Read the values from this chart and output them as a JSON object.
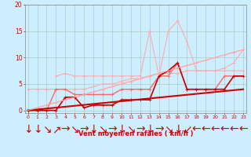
{
  "bg_color": "#cceeff",
  "grid_color": "#aacccc",
  "xlabel": "Vent moyen/en rafales ( km/h )",
  "xlabel_color": "#cc0000",
  "tick_color": "#cc0000",
  "yticks": [
    0,
    5,
    10,
    15,
    20
  ],
  "xticks": [
    0,
    1,
    2,
    3,
    4,
    5,
    6,
    7,
    8,
    9,
    10,
    11,
    12,
    13,
    14,
    15,
    16,
    17,
    18,
    19,
    20,
    21,
    22,
    23
  ],
  "xtick_labels": [
    "0",
    "1",
    "2",
    "3",
    "4",
    "5",
    "6",
    "7",
    "8",
    "9",
    "10",
    "11",
    "12",
    "13",
    "14",
    "15",
    "16",
    "17",
    "18",
    "19",
    "20",
    "21",
    "2223"
  ],
  "xlim": [
    -0.3,
    23.3
  ],
  "ylim": [
    -0.5,
    20
  ],
  "series": [
    {
      "name": "diagonal_light_upper",
      "color": "#ffaaaa",
      "lw": 0.8,
      "marker": "+",
      "markersize": 3,
      "x": [
        0,
        1,
        2,
        3,
        4,
        5,
        6,
        7,
        8,
        9,
        10,
        11,
        12,
        13,
        14,
        15,
        16,
        17,
        18,
        19,
        20,
        21,
        22,
        23
      ],
      "y": [
        0,
        0.5,
        1,
        1.5,
        2,
        2.5,
        3,
        3.5,
        4,
        4.5,
        5,
        5.5,
        6,
        6.5,
        7,
        7.5,
        8,
        8.5,
        9,
        9.5,
        10,
        10.5,
        11,
        11.5
      ]
    },
    {
      "name": "flat_light_upper",
      "color": "#ffaaaa",
      "lw": 0.8,
      "marker": "+",
      "markersize": 3,
      "x": [
        0,
        1,
        2,
        3,
        4,
        5,
        6,
        7,
        8,
        9,
        10,
        11,
        12,
        13,
        14,
        15,
        16,
        17,
        18,
        19,
        20,
        21,
        22,
        23
      ],
      "y": [
        4,
        4,
        4,
        4,
        4,
        4,
        4,
        4.5,
        5,
        5,
        5.5,
        6,
        6,
        6.5,
        7,
        7,
        7,
        7.5,
        7.5,
        7.5,
        7.5,
        8,
        9,
        11.5
      ]
    },
    {
      "name": "zigzag_light",
      "color": "#ffaaaa",
      "lw": 0.8,
      "marker": "+",
      "markersize": 3,
      "x": [
        3,
        4,
        5,
        6,
        7,
        8,
        9,
        10,
        11,
        12,
        13,
        14,
        15,
        16,
        17,
        18,
        19,
        20,
        21,
        22,
        23
      ],
      "y": [
        6.5,
        7,
        6.5,
        6.5,
        6.5,
        6.5,
        6.5,
        6.5,
        6.5,
        6.5,
        15,
        6.5,
        15,
        17,
        13,
        7.5,
        7.5,
        7.5,
        7.5,
        7.5,
        7.5
      ]
    },
    {
      "name": "medium_red",
      "color": "#ff6666",
      "lw": 1.0,
      "marker": "+",
      "markersize": 3,
      "x": [
        0,
        1,
        2,
        3,
        4,
        5,
        6,
        7,
        8,
        9,
        10,
        11,
        12,
        13,
        14,
        15,
        16,
        17,
        18,
        19,
        20,
        21,
        22,
        23
      ],
      "y": [
        0,
        0,
        0,
        4,
        4,
        3,
        3,
        3,
        3,
        3,
        4,
        4,
        4,
        4,
        6.5,
        6.5,
        9,
        4,
        4,
        4,
        4,
        6.5,
        6.5,
        6.5
      ]
    },
    {
      "name": "dark_red_zigzag",
      "color": "#cc0000",
      "lw": 1.2,
      "marker": "+",
      "markersize": 3,
      "x": [
        0,
        1,
        2,
        3,
        4,
        5,
        6,
        7,
        8,
        9,
        10,
        11,
        12,
        13,
        14,
        15,
        16,
        17,
        18,
        19,
        20,
        21,
        22,
        23
      ],
      "y": [
        0,
        0,
        0,
        0,
        2.5,
        2.5,
        0.5,
        1,
        1,
        1,
        2,
        2,
        2,
        2,
        6.5,
        7.5,
        9,
        4,
        4,
        4,
        4,
        4,
        6.5,
        6.5
      ]
    },
    {
      "name": "thick_diagonal",
      "color": "#cc0000",
      "lw": 1.5,
      "marker": "None",
      "markersize": 0,
      "x": [
        0,
        23
      ],
      "y": [
        0,
        4.0
      ]
    },
    {
      "name": "thin_diagonal_light",
      "color": "#ffaaaa",
      "lw": 0.8,
      "marker": "None",
      "markersize": 0,
      "x": [
        0,
        23
      ],
      "y": [
        0,
        11.5
      ]
    }
  ],
  "arrow_chars": [
    "↓",
    "↓",
    "↘",
    "↗",
    "→",
    "↘",
    "→",
    "↓",
    "↘",
    "→",
    "↓",
    "↘",
    "→",
    "↓",
    "→",
    "↘",
    "↓",
    "↙",
    "←",
    "←",
    "←",
    "←",
    "←",
    "←"
  ]
}
